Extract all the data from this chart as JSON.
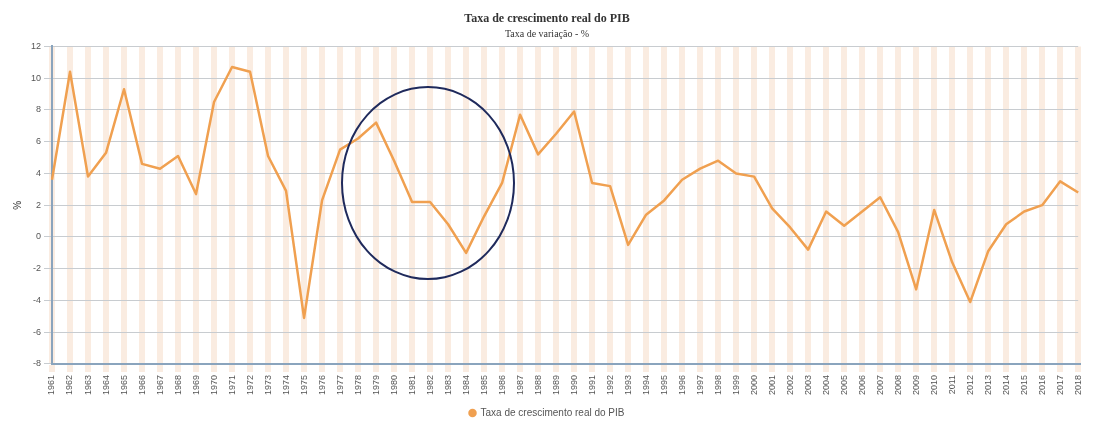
{
  "chart_data": {
    "type": "line",
    "title": "Taxa de crescimento real do PIB",
    "subtitle": "Taxa de variação - %",
    "ylabel": "%",
    "categories": [
      "1961",
      "1962",
      "1963",
      "1964",
      "1965",
      "1966",
      "1967",
      "1968",
      "1969",
      "1970",
      "1971",
      "1972",
      "1973",
      "1974",
      "1975",
      "1976",
      "1977",
      "1978",
      "1979",
      "1980",
      "1981",
      "1982",
      "1983",
      "1984",
      "1985",
      "1986",
      "1987",
      "1988",
      "1989",
      "1990",
      "1991",
      "1992",
      "1993",
      "1994",
      "1995",
      "1996",
      "1997",
      "1998",
      "1999",
      "2000",
      "2001",
      "2002",
      "2003",
      "2004",
      "2005",
      "2006",
      "2007",
      "2008",
      "2009",
      "2010",
      "2011",
      "2012",
      "2013",
      "2014",
      "2015",
      "2016",
      "2017",
      "2018"
    ],
    "series": [
      {
        "name": "Taxa de crescimento real do PIB",
        "color": "#f0a050",
        "values": [
          3.6,
          10.4,
          3.8,
          5.3,
          9.3,
          4.6,
          4.3,
          5.1,
          2.7,
          8.5,
          10.7,
          10.4,
          5.1,
          2.9,
          -5.1,
          2.3,
          5.5,
          6.2,
          7.2,
          4.8,
          2.2,
          2.2,
          0.8,
          -1.0,
          1.3,
          3.4,
          7.7,
          5.2,
          6.5,
          7.9,
          3.4,
          3.2,
          -0.5,
          1.4,
          2.3,
          3.6,
          4.3,
          4.8,
          4.0,
          3.8,
          1.8,
          0.6,
          -0.8,
          1.6,
          0.7,
          1.6,
          2.5,
          0.3,
          -3.3,
          1.7,
          -1.6,
          -4.1,
          -0.9,
          0.8,
          1.6,
          2.0,
          3.5,
          2.8
        ]
      }
    ],
    "ylim": [
      -8,
      12
    ],
    "yticks": [
      -8,
      -6,
      -4,
      -2,
      0,
      2,
      4,
      6,
      8,
      10,
      12
    ],
    "grid": true,
    "legend": "bottom",
    "line_style": "solid"
  }
}
